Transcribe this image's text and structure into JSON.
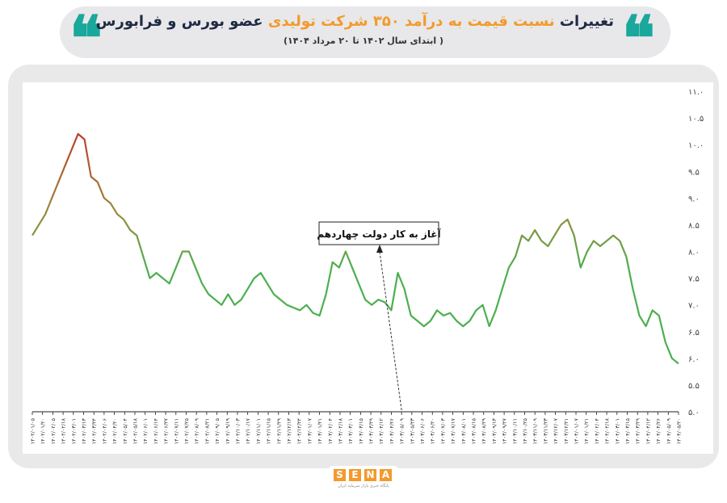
{
  "header": {
    "title_part1": "تغییرات",
    "title_part2": "نسبت قیمت به درآمد ۳۵۰ شرکت تولیدی",
    "title_part3": "عضو بورس و فرابورس",
    "subtitle": "( ابتدای سال ۱۴۰۲ تا ۲۰ مرداد ۱۴۰۴)",
    "quote_glyph": "❝"
  },
  "logo": {
    "letters": [
      "S",
      "E",
      "N",
      "A"
    ],
    "tagline": "پایگاه خبری بازار سرمایه ایران"
  },
  "colors": {
    "accent_teal": "#1aa79c",
    "accent_orange": "#f39a2b",
    "line_high": "#c0392b",
    "line_mid": "#9a8a3a",
    "line_low": "#4caf50"
  },
  "chart_data": {
    "type": "line",
    "title": "",
    "xlabel": "",
    "ylabel": "",
    "ylim": [
      5.0,
      11.0
    ],
    "yticks": [
      "۵.۰",
      "۵.۵",
      "۶.۰",
      "۶.۵",
      "۷.۰",
      "۷.۵",
      "۸.۰",
      "۸.۵",
      "۹.۰",
      "۹.۵",
      "۱۰.۰",
      "۱۰.۵",
      "۱۱.۰"
    ],
    "x_tick_labels": [
      "۱۴۰۲/۰۱/۰۵",
      "۱۴۰۲/۰۱/۲۰",
      "۱۴۰۲/۰۲/۰۵",
      "۱۴۰۲/۰۲/۱۸",
      "۱۴۰۲/۰۳/۰۱",
      "۱۴۰۲/۰۳/۱۳",
      "۱۴۰۲/۰۳/۲۴",
      "۱۴۰۲/۰۴/۰۶",
      "۱۴۰۲/۰۴/۲۰",
      "۱۴۰۲/۰۵/۰۴",
      "۱۴۰۲/۰۵/۱۸",
      "۱۴۰۲/۰۶/۰۱",
      "۱۴۰۲/۰۶/۱۴",
      "۱۴۰۲/۰۶/۲۷",
      "۱۴۰۲/۰۷/۱۱",
      "۱۴۰۲/۰۷/۲۵",
      "۱۴۰۲/۰۸/۰۹",
      "۱۴۰۲/۰۸/۲۱",
      "۱۴۰۲/۰۹/۰۵",
      "۱۴۰۲/۰۹/۱۹",
      "۱۴۰۲/۱۰/۰۳",
      "۱۴۰۲/۱۰/۱۷",
      "۱۴۰۲/۱۱/۰۱",
      "۱۴۰۲/۱۱/۱۵",
      "۱۴۰۲/۱۱/۲۹",
      "۱۴۰۲/۱۲/۱۳",
      "۱۴۰۲/۱۲/۲۴",
      "۱۴۰۳/۰۱/۰۷",
      "۱۴۰۳/۰۱/۲۱",
      "۱۴۰۳/۰۲/۰۴",
      "۱۴۰۳/۰۲/۱۸",
      "۱۴۰۳/۰۳/۰۱",
      "۱۴۰۳/۰۳/۱۵",
      "۱۴۰۳/۰۳/۲۹",
      "۱۴۰۳/۰۴/۱۲",
      "۱۴۰۳/۰۴/۲۶",
      "۱۴۰۳/۰۵/۰۹",
      "۱۴۰۳/۰۵/۲۳",
      "۱۴۰۳/۰۶/۰۶",
      "۱۴۰۳/۰۶/۲۰",
      "۱۴۰۳/۰۷/۰۳",
      "۱۴۰۳/۰۷/۱۷",
      "۱۴۰۳/۰۸/۰۱",
      "۱۴۰۳/۰۸/۱۵",
      "۱۴۰۳/۰۸/۲۹",
      "۱۴۰۳/۰۹/۱۳",
      "۱۴۰۳/۰۹/۲۷",
      "۱۴۰۳/۱۰/۱۱",
      "۱۴۰۳/۱۰/۲۵",
      "۱۴۰۳/۱۱/۰۹",
      "۱۴۰۳/۱۱/۲۳",
      "۱۴۰۳/۱۲/۰۷",
      "۱۴۰۳/۱۲/۲۱",
      "۱۴۰۴/۰۱/۰۷",
      "۱۴۰۴/۰۱/۲۱",
      "۱۴۰۴/۰۲/۰۴",
      "۱۴۰۴/۰۲/۱۸",
      "۱۴۰۴/۰۳/۰۱",
      "۱۴۰۴/۰۳/۱۵",
      "۱۴۰۴/۰۳/۲۹",
      "۱۴۰۴/۰۴/۱۲",
      "۱۴۰۴/۰۴/۲۶",
      "۱۴۰۴/۰۵/۰۹",
      "۱۴۰۴/۰۵/۲۰"
    ],
    "series": [
      {
        "values": [
          8.3,
          8.5,
          8.7,
          9.0,
          9.3,
          9.6,
          9.9,
          10.2,
          10.1,
          9.4,
          9.3,
          9.0,
          8.9,
          8.7,
          8.6,
          8.4,
          8.3,
          7.9,
          7.5,
          7.6,
          7.5,
          7.4,
          7.7,
          8.0,
          8.0,
          7.7,
          7.4,
          7.2,
          7.1,
          7.0,
          7.2,
          7.0,
          7.1,
          7.3,
          7.5,
          7.6,
          7.4,
          7.2,
          7.1,
          7.0,
          6.95,
          6.9,
          7.0,
          6.85,
          6.8,
          7.2,
          7.8,
          7.7,
          8.0,
          7.7,
          7.4,
          7.1,
          7.0,
          7.1,
          7.05,
          6.9,
          7.6,
          7.3,
          6.8,
          6.7,
          6.6,
          6.7,
          6.9,
          6.8,
          6.85,
          6.7,
          6.6,
          6.7,
          6.9,
          7.0,
          6.6,
          6.9,
          7.3,
          7.7,
          7.9,
          8.3,
          8.2,
          8.4,
          8.2,
          8.1,
          8.3,
          8.5,
          8.6,
          8.3,
          7.7,
          8.0,
          8.2,
          8.1,
          8.2,
          8.3,
          8.2,
          7.9,
          7.3,
          6.8,
          6.6,
          6.9,
          6.8,
          6.3,
          6.0,
          5.9
        ]
      }
    ],
    "annotations": [
      {
        "label": "آغاز به کار دولت چهاردهم",
        "x_tick": "۱۴۰۳/۰۵/۰۹"
      }
    ]
  }
}
